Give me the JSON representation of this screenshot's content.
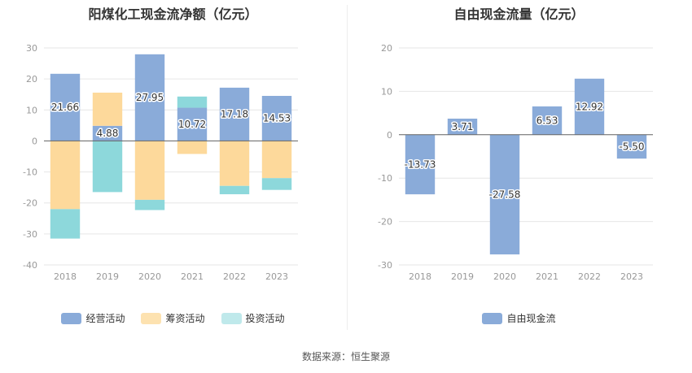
{
  "colors": {
    "operating": "#8aabd9",
    "financing": "#fdd99b",
    "investing": "#8dd8db",
    "free_cf": "#8aabd9",
    "grid": "#e6e6e6",
    "axis": "#666666"
  },
  "source": "数据来源：恒生聚源",
  "chart_data": [
    {
      "type": "bar",
      "stacked": true,
      "title": "阳煤化工现金流净额（亿元）",
      "categories": [
        "2018",
        "2019",
        "2020",
        "2021",
        "2022",
        "2023"
      ],
      "ylim": [
        -40,
        30
      ],
      "yticks": [
        30,
        20,
        10,
        0,
        -10,
        -20,
        -30,
        -40
      ],
      "grid": true,
      "legend_position": "bottom",
      "series": [
        {
          "name": "经营活动",
          "color_key": "operating",
          "values": [
            21.66,
            4.88,
            27.95,
            10.72,
            17.18,
            14.53
          ],
          "show_labels": true
        },
        {
          "name": "筹资活动",
          "color_key": "financing",
          "values": [
            -22.0,
            10.7,
            -19.0,
            -4.2,
            -14.5,
            -12.0
          ],
          "show_labels": false
        },
        {
          "name": "投资活动",
          "color_key": "investing",
          "values": [
            -9.5,
            -16.5,
            -3.3,
            3.6,
            -2.7,
            -3.8
          ],
          "show_labels": false
        }
      ]
    },
    {
      "type": "bar",
      "title": "自由现金流量（亿元）",
      "categories": [
        "2018",
        "2019",
        "2020",
        "2021",
        "2022",
        "2023"
      ],
      "ylim": [
        -30,
        20
      ],
      "yticks": [
        20,
        10,
        0,
        -10,
        -20,
        -30
      ],
      "grid": true,
      "legend_position": "bottom",
      "series": [
        {
          "name": "自由现金流",
          "color_key": "free_cf",
          "values": [
            -13.73,
            3.71,
            -27.58,
            6.53,
            12.92,
            -5.5
          ],
          "labels": [
            "-13.73",
            "3.71",
            "-27.58",
            "6.53",
            "12.92",
            "-5.50"
          ],
          "show_labels": true
        }
      ]
    }
  ]
}
